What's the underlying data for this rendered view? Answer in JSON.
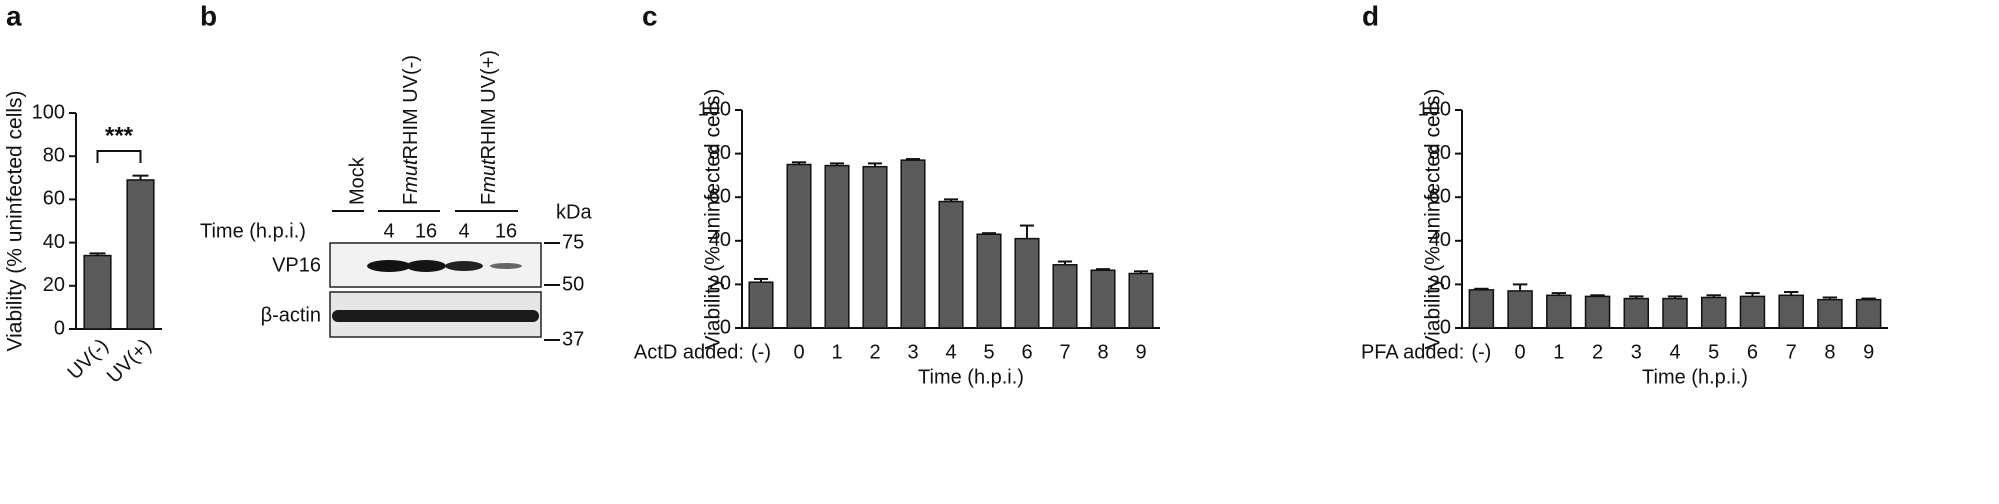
{
  "chart_data": [
    {
      "type": "bar",
      "panel": "a",
      "y_label": "Viability (% uninfected cells)",
      "categories": [
        "UV(-)",
        "UV(+)"
      ],
      "values": [
        34,
        69
      ],
      "errors": [
        1,
        2
      ],
      "annotation": "***",
      "color": "#5a5a5a",
      "ylim": [
        0,
        100
      ],
      "yticks": [
        0,
        20,
        40,
        60,
        80,
        100
      ]
    },
    {
      "type": "bar",
      "panel": "c",
      "y_label": "Viability (% uninfected cells)",
      "x_label": "Time (h.p.i.)",
      "row_label": "ActD added:",
      "categories": [
        "(-)",
        "0",
        "1",
        "2",
        "3",
        "4",
        "5",
        "6",
        "7",
        "8",
        "9"
      ],
      "values": [
        21,
        75,
        74.5,
        74,
        77,
        58,
        43,
        41,
        29,
        26.5,
        25
      ],
      "errors": [
        1.5,
        1,
        1,
        1.5,
        0.5,
        1,
        0.5,
        6,
        1.5,
        0.5,
        1
      ],
      "color": "#5a5a5a",
      "ylim": [
        0,
        100
      ],
      "yticks": [
        0,
        20,
        40,
        60,
        80,
        100
      ]
    },
    {
      "type": "bar",
      "panel": "d",
      "y_label": "Viability (% uninfected cells)",
      "x_label": "Time (h.p.i.)",
      "row_label": "PFA added:",
      "categories": [
        "(-)",
        "0",
        "1",
        "2",
        "3",
        "4",
        "5",
        "6",
        "7",
        "8",
        "9"
      ],
      "values": [
        17.5,
        17,
        15,
        14.5,
        13.5,
        13.5,
        14,
        14.5,
        15,
        13,
        13
      ],
      "errors": [
        0.5,
        3,
        1,
        0.5,
        1,
        1,
        1,
        1.5,
        1.5,
        1,
        0.5
      ],
      "color": "#5a5a5a",
      "ylim": [
        0,
        100
      ],
      "yticks": [
        0,
        20,
        40,
        60,
        80,
        100
      ]
    }
  ],
  "blot": {
    "panel": "b",
    "lanes": [
      "Mock",
      {
        "prefix": "F",
        "italic": "mut",
        "suffix": "RHIM UV(-)"
      },
      {
        "prefix": "F",
        "italic": "mut",
        "suffix": "RHIM UV(+)"
      }
    ],
    "time_label": "Time (h.p.i.)",
    "times": [
      "4",
      "16",
      "4",
      "16"
    ],
    "rows": [
      "VP16",
      "β-actin"
    ],
    "marker_unit": "kDa",
    "markers": [
      "75",
      "50",
      "37"
    ]
  }
}
